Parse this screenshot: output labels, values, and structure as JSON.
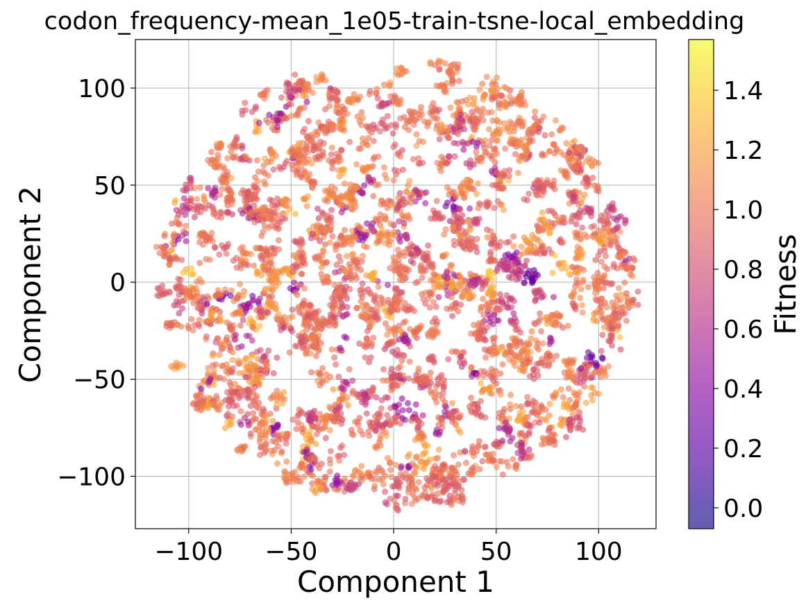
{
  "chart_data": {
    "type": "scatter",
    "title": "codon_frequency-mean_1e05-train-tsne-local_embedding",
    "xlabel": "Component 1",
    "ylabel": "Component 2",
    "xlim": [
      -126,
      128
    ],
    "ylim": [
      -127,
      125
    ],
    "xticks": [
      -100,
      -50,
      0,
      50,
      100
    ],
    "yticks": [
      -100,
      -50,
      0,
      50,
      100
    ],
    "xtick_labels": [
      "−100",
      "−50",
      "0",
      "50",
      "100"
    ],
    "ytick_labels": [
      "−100",
      "−50",
      "0",
      "50",
      "100"
    ],
    "grid": true,
    "colormap": "plasma",
    "alpha": 0.6,
    "colorbar": {
      "label": "Fitness",
      "range": [
        -0.07,
        1.57
      ],
      "ticks": [
        0.0,
        0.2,
        0.4,
        0.6,
        0.8,
        1.0,
        1.2,
        1.4
      ],
      "tick_labels": [
        "0.0",
        "0.2",
        "0.4",
        "0.6",
        "0.8",
        "1.0",
        "1.2",
        "1.4"
      ]
    },
    "point_cloud": {
      "shape": "disc",
      "center": [
        0,
        0
      ],
      "radius": 115,
      "typical_fitness": 1.0,
      "approx_points": 5000
    },
    "regions": [
      {
        "center": [
          -70,
          25
        ],
        "radius": 20,
        "fitness": 0.9
      },
      {
        "center": [
          65,
          0
        ],
        "radius": 15,
        "fitness": 0.5
      },
      {
        "center": [
          -10,
          30
        ],
        "radius": 25,
        "fitness": 1.05
      },
      {
        "center": [
          -30,
          -30
        ],
        "radius": 25,
        "fitness": 0.95
      }
    ]
  }
}
